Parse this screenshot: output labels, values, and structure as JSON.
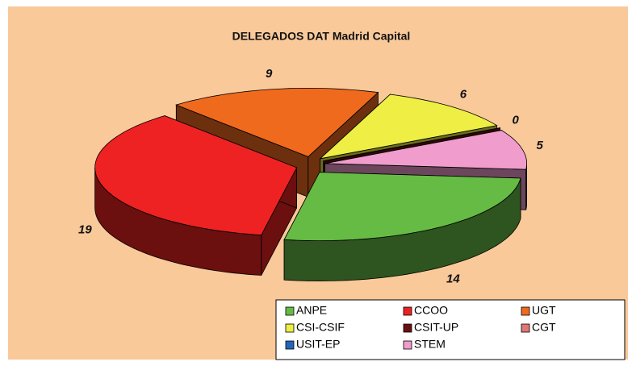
{
  "chart_data": {
    "type": "pie",
    "title": "DELEGADOS DAT Madrid Capital",
    "categories": [
      "ANPE",
      "CCOO",
      "UGT",
      "CSI-CSIF",
      "CSIT-UP",
      "CGT",
      "USIT-EP",
      "STEM"
    ],
    "values": [
      14,
      19,
      9,
      6,
      0,
      null,
      null,
      5
    ],
    "colors": [
      "#66bb44",
      "#ee2222",
      "#f06a1e",
      "#eeee44",
      "#6a1010",
      "#e07878",
      "#2266bb",
      "#f09ccc"
    ],
    "legend": "bottom-right"
  }
}
